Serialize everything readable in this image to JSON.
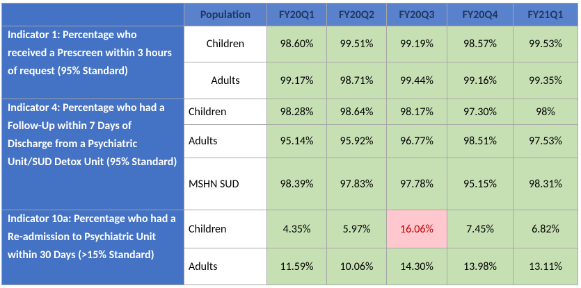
{
  "table": {
    "header": {
      "population": "Population",
      "periods": [
        "FY20Q1",
        "FY20Q2",
        "FY20Q3",
        "FY20Q4",
        "FY21Q1"
      ]
    },
    "groups": [
      {
        "indicator": "Indicator 1: Percentage who received a Prescreen within 3 hours of request (95% Standard)",
        "rows": [
          {
            "population": "Children",
            "values": [
              "98.60%",
              "99.51%",
              "99.19%",
              "98.57%",
              "99.53%"
            ]
          },
          {
            "population": "Adults",
            "values": [
              "99.17%",
              "98.71%",
              "99.44%",
              "99.16%",
              "99.35%"
            ]
          }
        ]
      },
      {
        "indicator": "Indicator 4: Percentage who had a Follow-Up within 7 Days of Discharge from a Psychiatric Unit/SUD Detox Unit (95% Standard)",
        "rows": [
          {
            "population": "Children",
            "values": [
              "98.28%",
              "98.64%",
              "98.17%",
              "97.30%",
              "98%"
            ]
          },
          {
            "population": "Adults",
            "values": [
              "95.14%",
              "95.92%",
              "96.77%",
              "98.51%",
              "97.53%"
            ]
          },
          {
            "population": "MSHN SUD",
            "values": [
              "98.39%",
              "97.83%",
              "97.78%",
              "95.15%",
              "98.31%"
            ]
          }
        ]
      },
      {
        "indicator": "Indicator 10a:  Percentage who had a Re-admission to Psychiatric Unit within 30 Days (>15% Standard)",
        "rows": [
          {
            "population": "Children",
            "values": [
              "4.35%",
              "5.97%",
              "16.06%",
              "7.45%",
              "6.82%"
            ],
            "highlight_index": 2
          },
          {
            "population": "Adults",
            "values": [
              "11.59%",
              "10.06%",
              "14.30%",
              "13.98%",
              "13.11%"
            ]
          }
        ]
      }
    ]
  }
}
